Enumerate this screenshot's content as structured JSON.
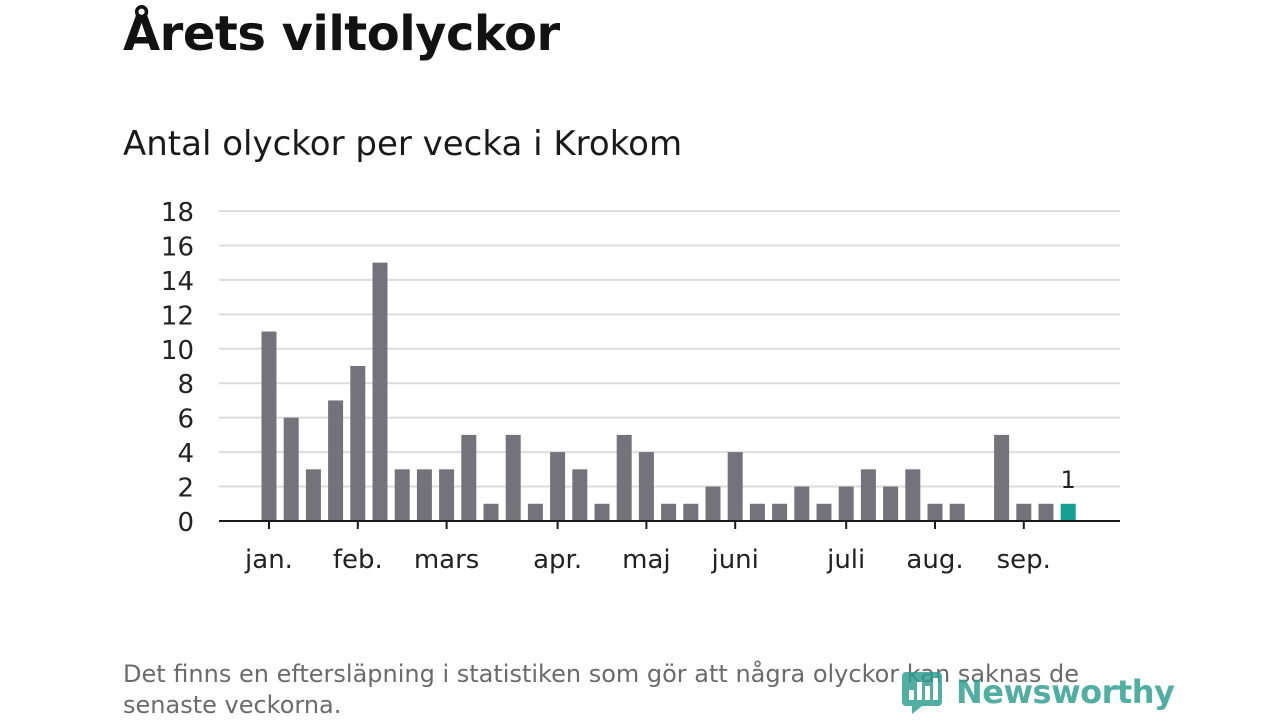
{
  "title": "Årets viltolyckor",
  "subtitle": "Antal olyckor per vecka i Krokom",
  "footnote": "Det finns en eftersläpning i statistiken som gör att några olyckor kan saknas de senaste veckorna.",
  "logo": {
    "text": "Newsworthy",
    "icon": "newsworthy-logo-icon"
  },
  "colors": {
    "bar": "#74737a",
    "highlight": "#13a192",
    "grid": "#dcdcdc",
    "axis": "#1a1a1a"
  },
  "chart_data": {
    "type": "bar",
    "ylim": [
      0,
      18
    ],
    "yticks": [
      0,
      2,
      4,
      6,
      8,
      10,
      12,
      14,
      16,
      18
    ],
    "grid": true,
    "values": [
      11,
      6,
      3,
      7,
      9,
      15,
      3,
      3,
      3,
      5,
      1,
      5,
      1,
      4,
      3,
      1,
      5,
      4,
      1,
      1,
      2,
      4,
      1,
      1,
      2,
      1,
      2,
      3,
      2,
      3,
      1,
      1,
      0,
      5,
      1,
      1,
      1
    ],
    "month_labels": [
      {
        "label": "jan.",
        "week": 0
      },
      {
        "label": "feb.",
        "week": 4
      },
      {
        "label": "mars",
        "week": 8
      },
      {
        "label": "apr.",
        "week": 13
      },
      {
        "label": "maj",
        "week": 17
      },
      {
        "label": "juni",
        "week": 21
      },
      {
        "label": "juli",
        "week": 26
      },
      {
        "label": "aug.",
        "week": 30
      },
      {
        "label": "sep.",
        "week": 34
      }
    ],
    "highlight_index": 36,
    "annotation": {
      "index": 36,
      "text": "1"
    }
  }
}
